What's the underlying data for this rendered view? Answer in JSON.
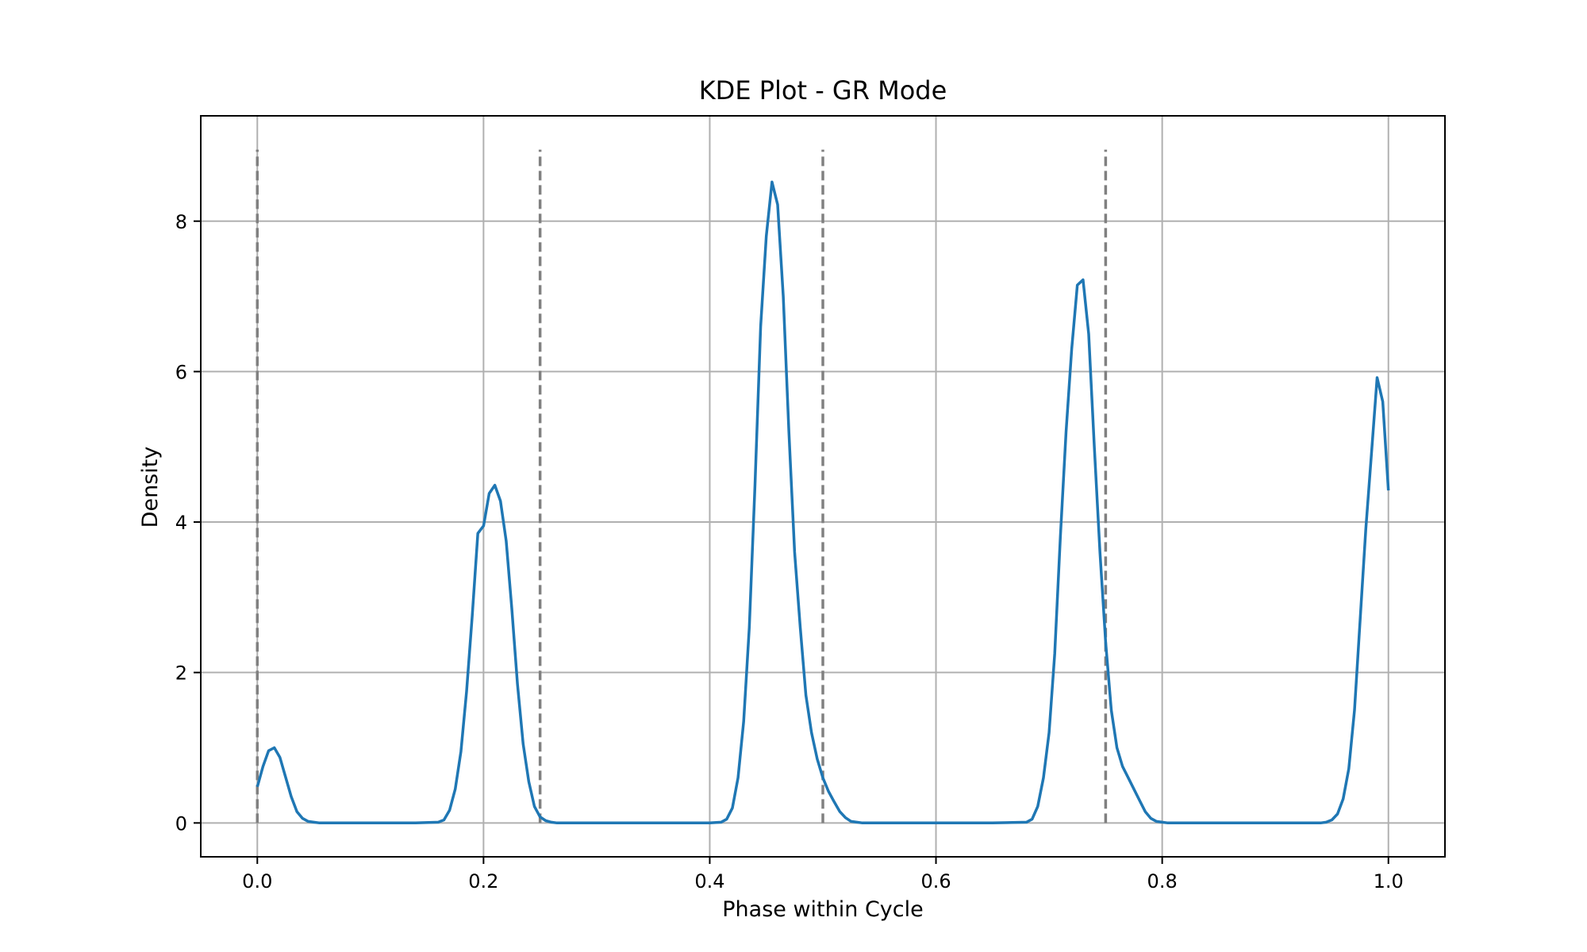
{
  "chart_data": {
    "type": "line",
    "title": "KDE Plot - GR Mode",
    "xlabel": "Phase within Cycle",
    "ylabel": "Density",
    "xlim": [
      -0.05,
      1.05
    ],
    "ylim": [
      -0.45,
      9.4
    ],
    "xticks": [
      0.0,
      0.2,
      0.4,
      0.6,
      0.8,
      1.0
    ],
    "xtick_labels": [
      "0.0",
      "0.2",
      "0.4",
      "0.6",
      "0.8",
      "1.0"
    ],
    "yticks": [
      0,
      2,
      4,
      6,
      8
    ],
    "ytick_labels": [
      "0",
      "2",
      "4",
      "6",
      "8"
    ],
    "grid": true,
    "line_color": "#1f77b4",
    "vline_color": "#808080",
    "vlines": {
      "x": [
        0.0,
        0.25,
        0.5,
        0.75
      ],
      "ymin": 0,
      "ymax": 8.95,
      "style": "dashed"
    },
    "series": [
      {
        "x": [
          0.0,
          0.005,
          0.01,
          0.015,
          0.02,
          0.025,
          0.03,
          0.035,
          0.04,
          0.045,
          0.05,
          0.055,
          0.06,
          0.08,
          0.1,
          0.12,
          0.14,
          0.16,
          0.165,
          0.17,
          0.175,
          0.18,
          0.185,
          0.19,
          0.195,
          0.2,
          0.205,
          0.21,
          0.215,
          0.22,
          0.225,
          0.23,
          0.235,
          0.24,
          0.245,
          0.25,
          0.255,
          0.26,
          0.265,
          0.27,
          0.28,
          0.3,
          0.35,
          0.4,
          0.41,
          0.415,
          0.42,
          0.425,
          0.43,
          0.435,
          0.44,
          0.445,
          0.45,
          0.455,
          0.46,
          0.465,
          0.47,
          0.475,
          0.48,
          0.485,
          0.49,
          0.495,
          0.5,
          0.505,
          0.51,
          0.515,
          0.52,
          0.525,
          0.53,
          0.535,
          0.54,
          0.545,
          0.55,
          0.56,
          0.6,
          0.65,
          0.68,
          0.685,
          0.69,
          0.695,
          0.7,
          0.705,
          0.71,
          0.715,
          0.72,
          0.725,
          0.73,
          0.735,
          0.74,
          0.745,
          0.75,
          0.755,
          0.76,
          0.765,
          0.77,
          0.775,
          0.78,
          0.785,
          0.79,
          0.795,
          0.8,
          0.805,
          0.81,
          0.82,
          0.85,
          0.9,
          0.94,
          0.945,
          0.95,
          0.955,
          0.96,
          0.965,
          0.97,
          0.975,
          0.98,
          0.985,
          0.99,
          0.995,
          1.0
        ],
        "values": [
          0.48,
          0.75,
          0.96,
          1.0,
          0.87,
          0.61,
          0.35,
          0.15,
          0.06,
          0.02,
          0.01,
          0.0,
          0.0,
          0.0,
          0.0,
          0.0,
          0.0,
          0.01,
          0.04,
          0.17,
          0.45,
          0.95,
          1.75,
          2.75,
          3.85,
          3.95,
          4.38,
          4.49,
          4.28,
          3.75,
          2.85,
          1.85,
          1.05,
          0.55,
          0.22,
          0.08,
          0.03,
          0.01,
          0.0,
          0.0,
          0.0,
          0.0,
          0.0,
          0.0,
          0.01,
          0.05,
          0.2,
          0.6,
          1.35,
          2.6,
          4.5,
          6.6,
          7.8,
          8.52,
          8.22,
          7.0,
          5.2,
          3.6,
          2.6,
          1.7,
          1.2,
          0.85,
          0.6,
          0.42,
          0.28,
          0.15,
          0.07,
          0.02,
          0.01,
          0.0,
          0.0,
          0.0,
          0.0,
          0.0,
          0.0,
          0.0,
          0.01,
          0.05,
          0.22,
          0.6,
          1.2,
          2.25,
          3.8,
          5.2,
          6.3,
          7.15,
          7.22,
          6.5,
          5.0,
          3.6,
          2.4,
          1.5,
          1.0,
          0.75,
          0.6,
          0.45,
          0.3,
          0.15,
          0.06,
          0.02,
          0.01,
          0.0,
          0.0,
          0.0,
          0.0,
          0.0,
          0.0,
          0.01,
          0.04,
          0.12,
          0.32,
          0.72,
          1.5,
          2.7,
          3.9,
          4.9,
          5.92,
          5.6,
          4.42
        ]
      }
    ]
  }
}
